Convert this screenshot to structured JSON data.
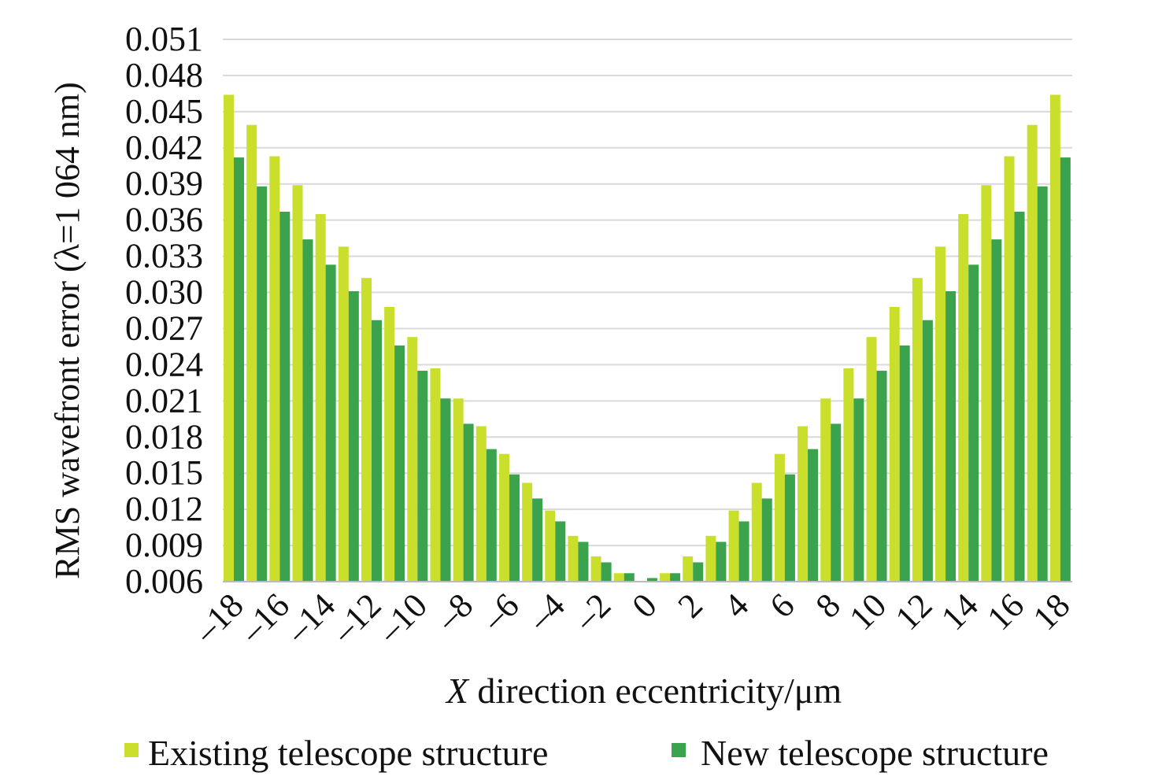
{
  "chart_data": {
    "type": "bar",
    "title": "",
    "xlabel_italic": "X",
    "xlabel_rest": " direction eccentricity/μm",
    "ylabel": "RMS wavefront error (λ=1 064 nm)",
    "ylim": [
      0.006,
      0.051
    ],
    "yticks": [
      "0.006",
      "0.009",
      "0.012",
      "0.015",
      "0.018",
      "0.021",
      "0.024",
      "0.027",
      "0.030",
      "0.033",
      "0.036",
      "0.039",
      "0.042",
      "0.045",
      "0.048",
      "0.051"
    ],
    "grid": true,
    "legend_position": "bottom",
    "categories": [
      -18,
      -17,
      -16,
      -15,
      -14,
      -13,
      -12,
      -11,
      -10,
      -9,
      -8,
      -7,
      -6,
      -5,
      -4,
      -3,
      -2,
      -1,
      0,
      1,
      2,
      3,
      4,
      5,
      6,
      7,
      8,
      9,
      10,
      11,
      12,
      13,
      14,
      15,
      16,
      17,
      18
    ],
    "xtick_labels": [
      "–18",
      "–16",
      "–14",
      "–12",
      "–10",
      "–8",
      "–6",
      "–4",
      "–2",
      "0",
      "2",
      "4",
      "6",
      "8",
      "10",
      "12",
      "14",
      "16",
      "18"
    ],
    "series": [
      {
        "name": "Existing telescope structure",
        "color": "#c9df2c",
        "values": [
          0.0464,
          0.0439,
          0.0413,
          0.0389,
          0.0365,
          0.0338,
          0.0312,
          0.0288,
          0.0263,
          0.0237,
          0.0212,
          0.0189,
          0.0166,
          0.0142,
          0.0119,
          0.0098,
          0.0081,
          0.0067,
          0.006,
          0.0067,
          0.0081,
          0.0098,
          0.0119,
          0.0142,
          0.0166,
          0.0189,
          0.0212,
          0.0237,
          0.0263,
          0.0288,
          0.0312,
          0.0338,
          0.0365,
          0.0389,
          0.0413,
          0.0439,
          0.0464
        ]
      },
      {
        "name": "New telescope structure",
        "color": "#3ba24e",
        "values": [
          0.0412,
          0.0388,
          0.0367,
          0.0344,
          0.0323,
          0.0301,
          0.0277,
          0.0256,
          0.0235,
          0.0212,
          0.0191,
          0.017,
          0.0149,
          0.0129,
          0.011,
          0.0093,
          0.0076,
          0.0067,
          0.0063,
          0.0067,
          0.0076,
          0.0093,
          0.011,
          0.0129,
          0.0149,
          0.017,
          0.0191,
          0.0212,
          0.0235,
          0.0256,
          0.0277,
          0.0301,
          0.0323,
          0.0344,
          0.0367,
          0.0388,
          0.0412
        ]
      }
    ]
  }
}
